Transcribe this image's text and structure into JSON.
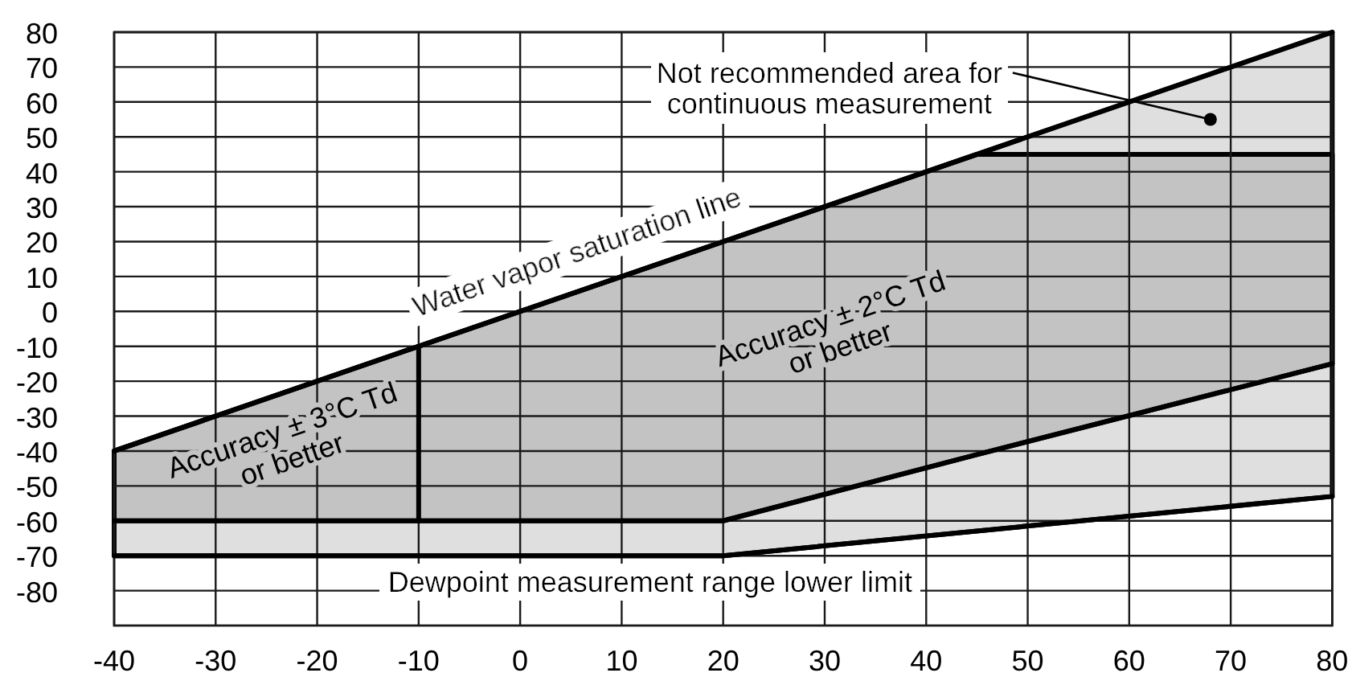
{
  "chart_data": {
    "type": "line",
    "xlim": [
      -40,
      80
    ],
    "xticks": [
      -40,
      -30,
      -20,
      -10,
      0,
      10,
      20,
      30,
      40,
      50,
      60,
      70,
      80
    ],
    "ylim": [
      -90,
      80
    ],
    "yticks": [
      -80,
      -70,
      -60,
      -50,
      -40,
      -30,
      -20,
      -10,
      0,
      10,
      20,
      30,
      40,
      50,
      60,
      70,
      80
    ],
    "grid": true,
    "series": [
      {
        "name": "Dewpoint measurement range lower limit",
        "color": "#000000",
        "x": [
          -40,
          20,
          80
        ],
        "values": [
          -70,
          -70,
          -53
        ],
        "lower": [
          -70,
          -70,
          -53
        ],
        "upper": [
          -40,
          20,
          80
        ]
      },
      {
        "name": "Water vapor saturation line",
        "color": "#000000",
        "x": [
          -40,
          80
        ],
        "values": [
          -40,
          80
        ]
      },
      {
        "color": "#000000",
        "x": [
          -40,
          20,
          45,
          80
        ],
        "values": [
          -60,
          -60,
          -41,
          -15
        ],
        "lower": [
          -60,
          -60,
          -41,
          -15
        ],
        "upper": [
          -40,
          20,
          45,
          45
        ]
      },
      {
        "color": "#000000",
        "x": [
          -10,
          -10
        ],
        "values": [
          -10,
          -60
        ]
      }
    ],
    "annotations": [
      {
        "text": "Not recommended area for\ncontinuous measurement",
        "x": 68,
        "y": 55
      },
      "Accuracy ± 3°C Td\nor better",
      "Accuracy ± 2°C Td\nor better"
    ]
  }
}
